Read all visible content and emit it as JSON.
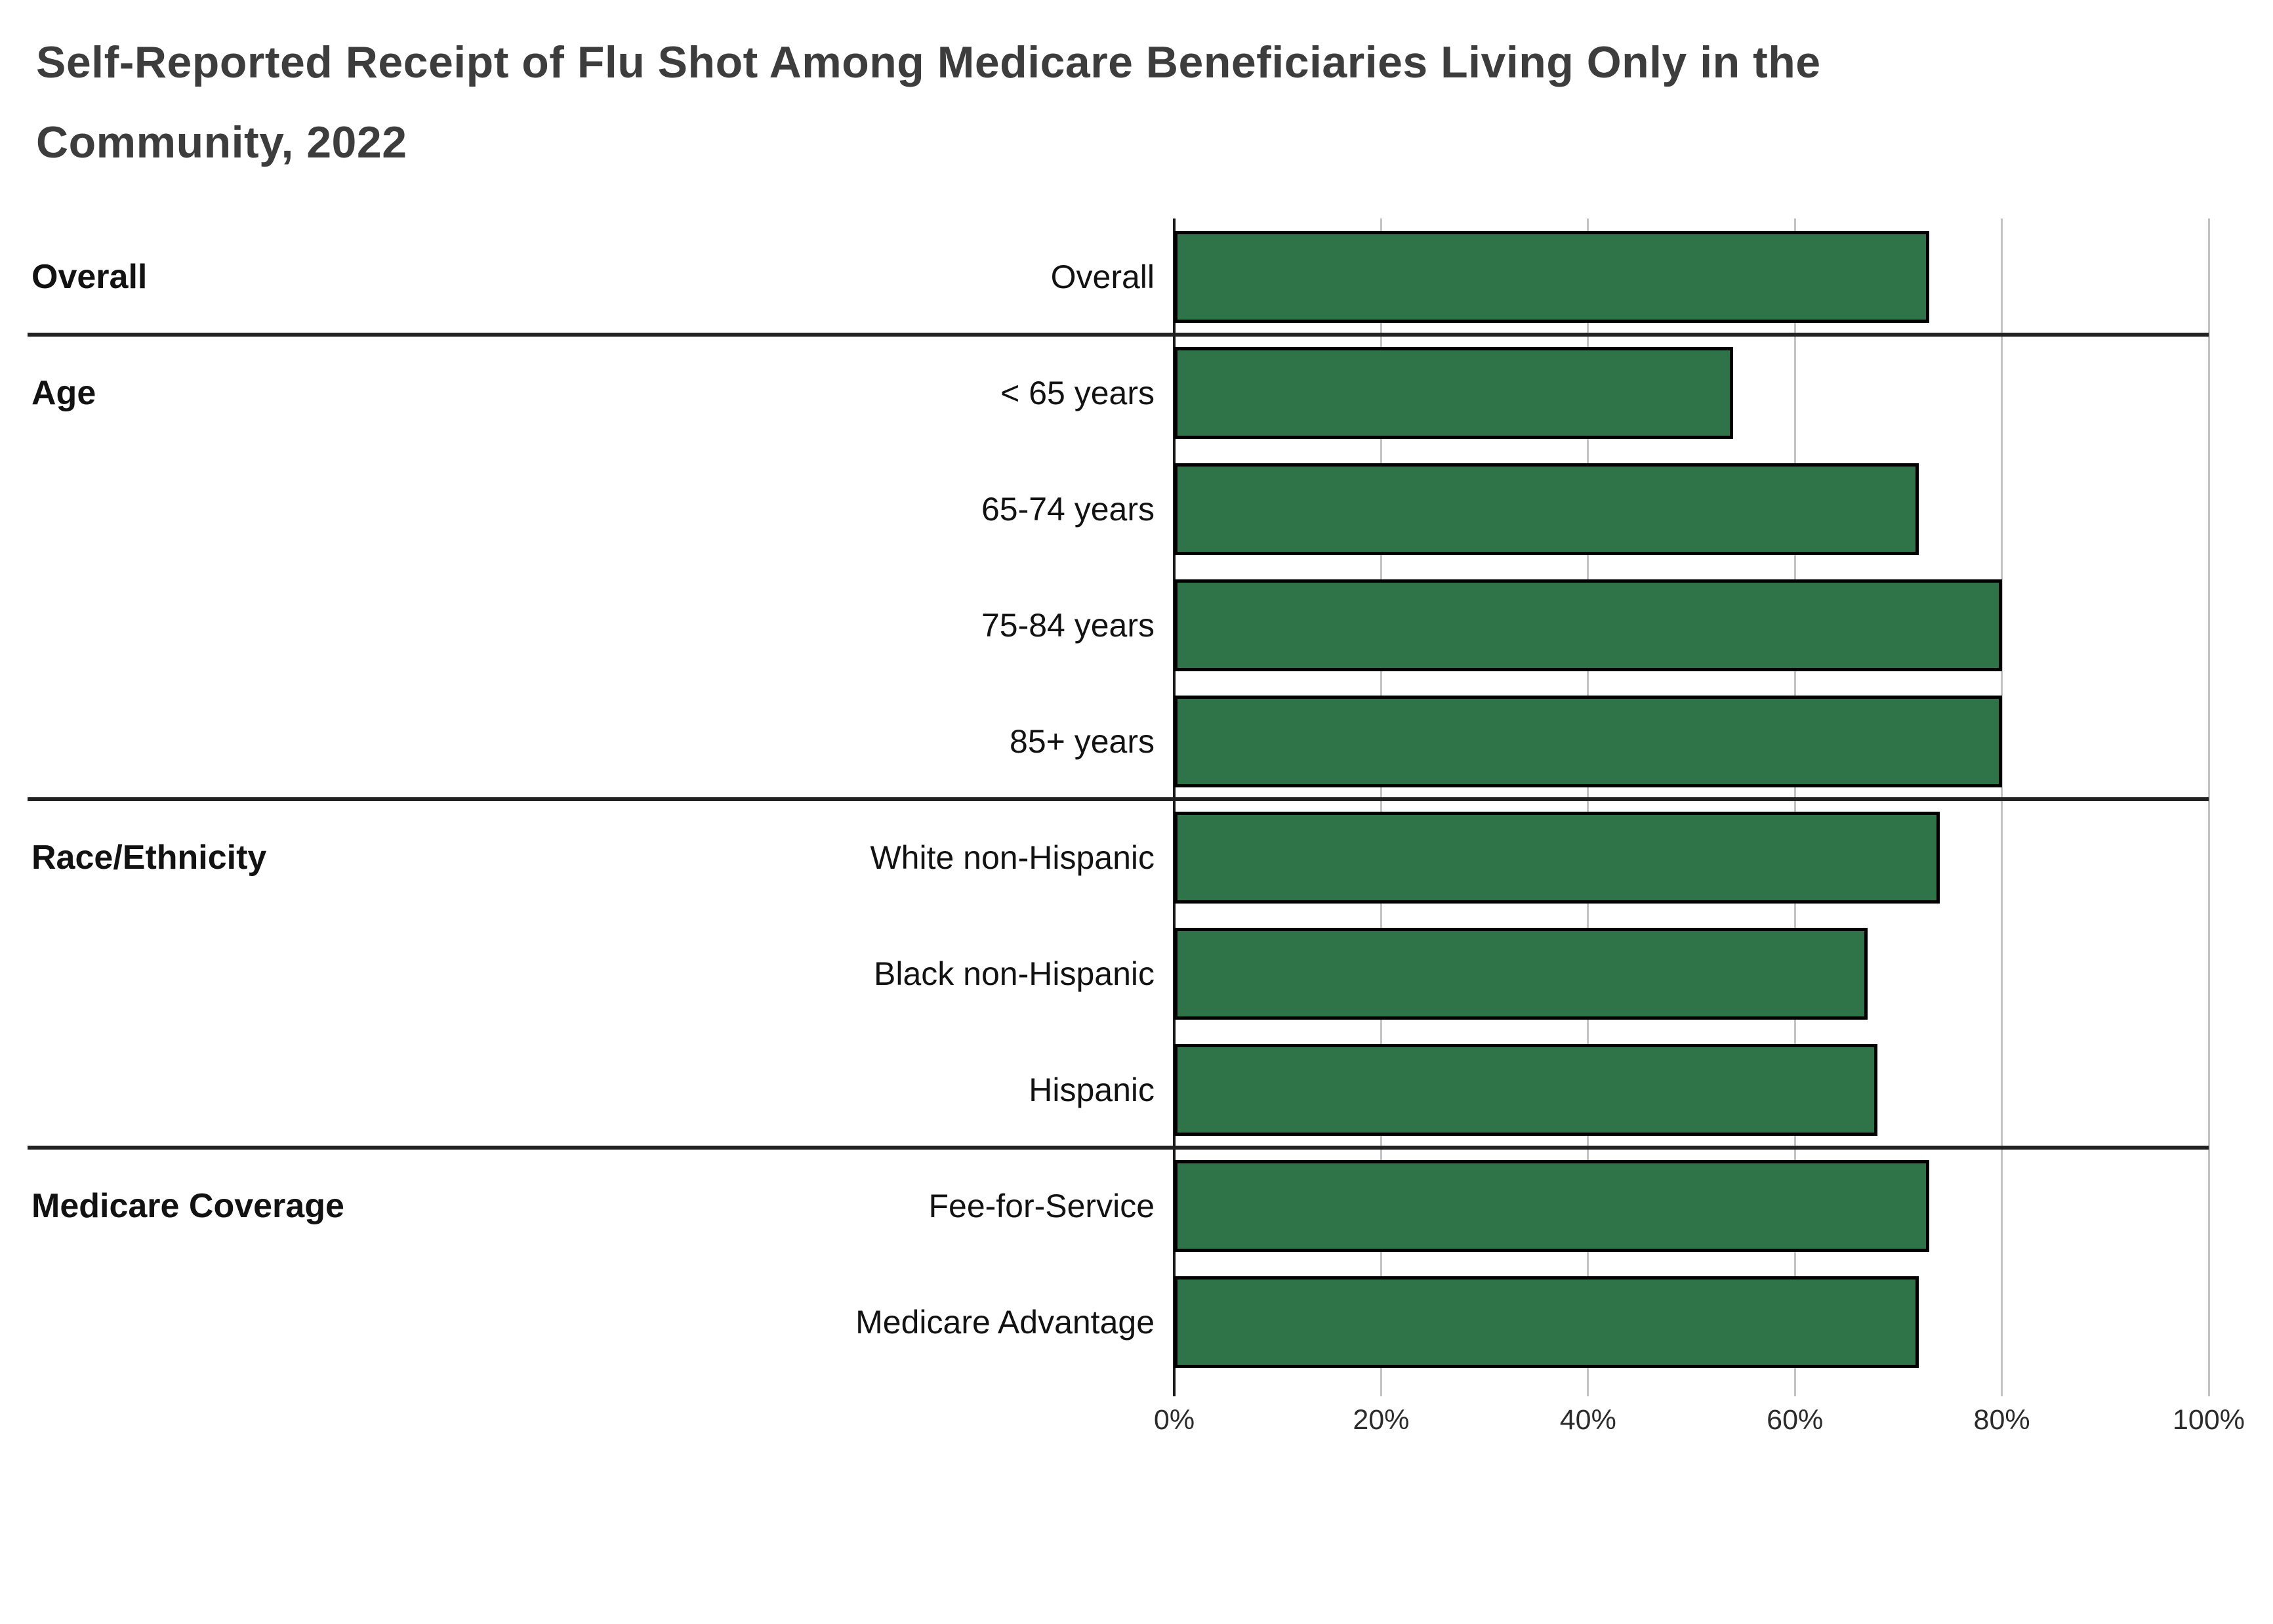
{
  "header": {
    "title_lines": [
      "Self-Reported Receipt of Flu Shot Among Medicare Beneficiaries Living Only in the",
      "Community, 2022"
    ]
  },
  "ui": {
    "colors": {
      "background": "#ffffff",
      "bar_fill": "#2F7348",
      "bar_border": "#000000",
      "axis_line": "#1a1a1a",
      "gridline": "#c3c3c3",
      "divider": "#222222",
      "title_text": "#3d3d3d",
      "label_text": "#121212",
      "tick_text": "#2b2b2b"
    }
  },
  "chart_data": {
    "type": "bar",
    "orientation": "horizontal",
    "title": "Self-Reported Receipt of Flu Shot Among Medicare Beneficiaries Living Only in the Community, 2022",
    "xlabel": "",
    "ylabel": "",
    "unit": "percent",
    "xlim": [
      0,
      100
    ],
    "x_ticks": [
      "0%",
      "20%",
      "40%",
      "60%",
      "80%",
      "100%"
    ],
    "grid": true,
    "legend": false,
    "categories": [
      "Overall",
      "< 65 years",
      "65-74 years",
      "75-84 years",
      "85+ years",
      "White non-Hispanic",
      "Black non-Hispanic",
      "Hispanic",
      "Fee-for-Service",
      "Medicare Advantage"
    ],
    "values": [
      73,
      54,
      72,
      80,
      80,
      74,
      67,
      68,
      73,
      72
    ],
    "groups": [
      {
        "label": "Overall",
        "rows": [
          {
            "category": "Overall",
            "value": 73
          }
        ]
      },
      {
        "label": "Age",
        "rows": [
          {
            "category": "< 65 years",
            "value": 54
          },
          {
            "category": "65-74 years",
            "value": 72
          },
          {
            "category": "75-84 years",
            "value": 80
          },
          {
            "category": "85+ years",
            "value": 80
          }
        ]
      },
      {
        "label": "Race/Ethnicity",
        "rows": [
          {
            "category": "White non-Hispanic",
            "value": 74
          },
          {
            "category": "Black non-Hispanic",
            "value": 67
          },
          {
            "category": "Hispanic",
            "value": 68
          }
        ]
      },
      {
        "label": "Medicare Coverage",
        "rows": [
          {
            "category": "Fee-for-Service",
            "value": 73
          },
          {
            "category": "Medicare Advantage",
            "value": 72
          }
        ]
      }
    ]
  }
}
